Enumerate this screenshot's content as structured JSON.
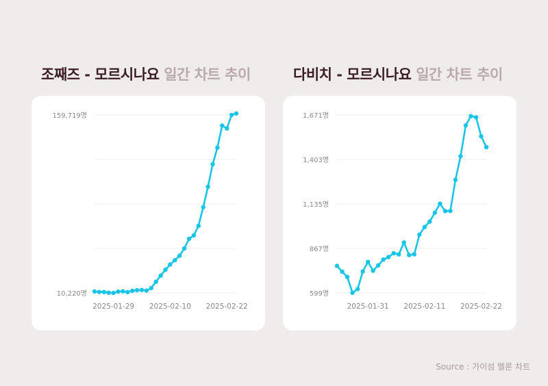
{
  "footer": {
    "source": "Source : 가이섬 멜론 차트"
  },
  "colors": {
    "line": "#19c5e6",
    "grid": "#ececec",
    "title_main": "#3a1c24",
    "title_sub": "#b9a9ad",
    "tick": "#888888"
  },
  "chart_data": [
    {
      "type": "line",
      "title_main": "조째즈 - 모르시나요",
      "title_sub": "일간 차트 추이",
      "y_ticks": [
        "159,719명",
        "10,220명"
      ],
      "ylim": [
        10220,
        159719
      ],
      "x_tick_labels": [
        {
          "label": "2025-01-29",
          "index": 4
        },
        {
          "label": "2025-02-10",
          "index": 16
        },
        {
          "label": "2025-02-22",
          "index": 28
        }
      ],
      "x": [
        "2025-01-25",
        "2025-01-26",
        "2025-01-27",
        "2025-01-28",
        "2025-01-29",
        "2025-01-30",
        "2025-01-31",
        "2025-02-01",
        "2025-02-02",
        "2025-02-03",
        "2025-02-04",
        "2025-02-05",
        "2025-02-06",
        "2025-02-07",
        "2025-02-08",
        "2025-02-09",
        "2025-02-10",
        "2025-02-11",
        "2025-02-12",
        "2025-02-13",
        "2025-02-14",
        "2025-02-15",
        "2025-02-16",
        "2025-02-17",
        "2025-02-18",
        "2025-02-19",
        "2025-02-20",
        "2025-02-21",
        "2025-02-22",
        "2025-02-23",
        "2025-02-24"
      ],
      "values": [
        11500,
        11000,
        11000,
        10400,
        10220,
        11300,
        11600,
        10900,
        12000,
        12500,
        12700,
        12200,
        14300,
        19600,
        24800,
        29700,
        34100,
        37700,
        41500,
        47600,
        55700,
        58600,
        66600,
        82300,
        99400,
        118300,
        132300,
        150800,
        148400,
        159719,
        161000
      ]
    },
    {
      "type": "line",
      "title_main": "다비치 - 모르시나요",
      "title_sub": "일간 차트 추이",
      "y_ticks": [
        "1,671명",
        "1,403명",
        "1,135명",
        "867명",
        "599명"
      ],
      "ylim": [
        599,
        1671
      ],
      "x_tick_labels": [
        {
          "label": "2025-01-31",
          "index": 6
        },
        {
          "label": "2025-02-11",
          "index": 17
        },
        {
          "label": "2025-02-22",
          "index": 28
        }
      ],
      "x": [
        "2025-01-25",
        "2025-01-26",
        "2025-01-27",
        "2025-01-28",
        "2025-01-29",
        "2025-01-30",
        "2025-01-31",
        "2025-02-01",
        "2025-02-02",
        "2025-02-03",
        "2025-02-04",
        "2025-02-05",
        "2025-02-06",
        "2025-02-07",
        "2025-02-08",
        "2025-02-09",
        "2025-02-10",
        "2025-02-11",
        "2025-02-12",
        "2025-02-13",
        "2025-02-14",
        "2025-02-15",
        "2025-02-16",
        "2025-02-17",
        "2025-02-18",
        "2025-02-19",
        "2025-02-20",
        "2025-02-21",
        "2025-02-22",
        "2025-02-23"
      ],
      "values": [
        762,
        727,
        695,
        600,
        622,
        728,
        786,
        733,
        765,
        800,
        815,
        838,
        831,
        903,
        827,
        832,
        950,
        996,
        1029,
        1082,
        1137,
        1092,
        1093,
        1280,
        1423,
        1608,
        1664,
        1657,
        1542,
        1477
      ]
    }
  ]
}
